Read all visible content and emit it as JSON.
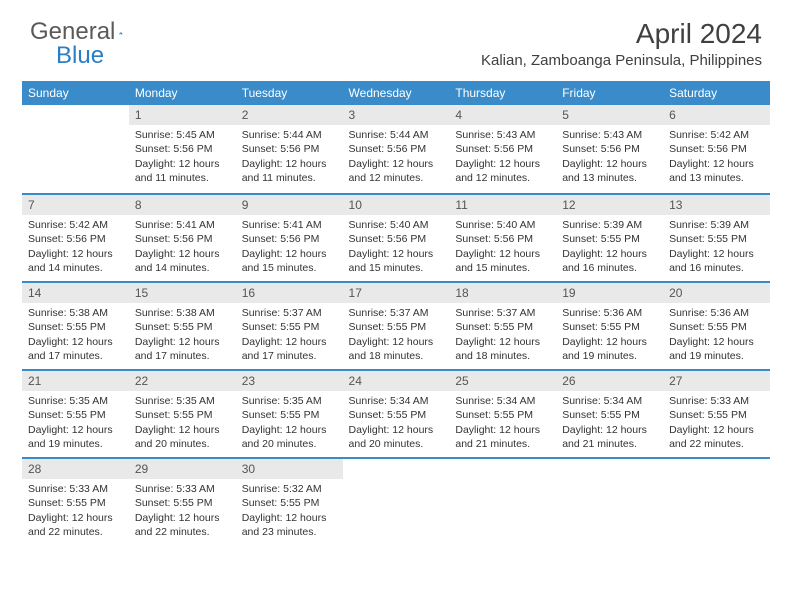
{
  "logo": {
    "text1": "General",
    "text2": "Blue"
  },
  "title": "April 2024",
  "location": "Kalian, Zamboanga Peninsula, Philippines",
  "colors": {
    "header_bg": "#3a8bc9",
    "header_text": "#ffffff",
    "daynum_bg": "#e9e9e9",
    "border": "#3a8bc9",
    "logo_gray": "#5a5a5a",
    "logo_blue": "#2a7ec5"
  },
  "dayHeaders": [
    "Sunday",
    "Monday",
    "Tuesday",
    "Wednesday",
    "Thursday",
    "Friday",
    "Saturday"
  ],
  "weeks": [
    [
      null,
      {
        "n": "1",
        "sr": "Sunrise: 5:45 AM",
        "ss": "Sunset: 5:56 PM",
        "dl": "Daylight: 12 hours and 11 minutes."
      },
      {
        "n": "2",
        "sr": "Sunrise: 5:44 AM",
        "ss": "Sunset: 5:56 PM",
        "dl": "Daylight: 12 hours and 11 minutes."
      },
      {
        "n": "3",
        "sr": "Sunrise: 5:44 AM",
        "ss": "Sunset: 5:56 PM",
        "dl": "Daylight: 12 hours and 12 minutes."
      },
      {
        "n": "4",
        "sr": "Sunrise: 5:43 AM",
        "ss": "Sunset: 5:56 PM",
        "dl": "Daylight: 12 hours and 12 minutes."
      },
      {
        "n": "5",
        "sr": "Sunrise: 5:43 AM",
        "ss": "Sunset: 5:56 PM",
        "dl": "Daylight: 12 hours and 13 minutes."
      },
      {
        "n": "6",
        "sr": "Sunrise: 5:42 AM",
        "ss": "Sunset: 5:56 PM",
        "dl": "Daylight: 12 hours and 13 minutes."
      }
    ],
    [
      {
        "n": "7",
        "sr": "Sunrise: 5:42 AM",
        "ss": "Sunset: 5:56 PM",
        "dl": "Daylight: 12 hours and 14 minutes."
      },
      {
        "n": "8",
        "sr": "Sunrise: 5:41 AM",
        "ss": "Sunset: 5:56 PM",
        "dl": "Daylight: 12 hours and 14 minutes."
      },
      {
        "n": "9",
        "sr": "Sunrise: 5:41 AM",
        "ss": "Sunset: 5:56 PM",
        "dl": "Daylight: 12 hours and 15 minutes."
      },
      {
        "n": "10",
        "sr": "Sunrise: 5:40 AM",
        "ss": "Sunset: 5:56 PM",
        "dl": "Daylight: 12 hours and 15 minutes."
      },
      {
        "n": "11",
        "sr": "Sunrise: 5:40 AM",
        "ss": "Sunset: 5:56 PM",
        "dl": "Daylight: 12 hours and 15 minutes."
      },
      {
        "n": "12",
        "sr": "Sunrise: 5:39 AM",
        "ss": "Sunset: 5:55 PM",
        "dl": "Daylight: 12 hours and 16 minutes."
      },
      {
        "n": "13",
        "sr": "Sunrise: 5:39 AM",
        "ss": "Sunset: 5:55 PM",
        "dl": "Daylight: 12 hours and 16 minutes."
      }
    ],
    [
      {
        "n": "14",
        "sr": "Sunrise: 5:38 AM",
        "ss": "Sunset: 5:55 PM",
        "dl": "Daylight: 12 hours and 17 minutes."
      },
      {
        "n": "15",
        "sr": "Sunrise: 5:38 AM",
        "ss": "Sunset: 5:55 PM",
        "dl": "Daylight: 12 hours and 17 minutes."
      },
      {
        "n": "16",
        "sr": "Sunrise: 5:37 AM",
        "ss": "Sunset: 5:55 PM",
        "dl": "Daylight: 12 hours and 17 minutes."
      },
      {
        "n": "17",
        "sr": "Sunrise: 5:37 AM",
        "ss": "Sunset: 5:55 PM",
        "dl": "Daylight: 12 hours and 18 minutes."
      },
      {
        "n": "18",
        "sr": "Sunrise: 5:37 AM",
        "ss": "Sunset: 5:55 PM",
        "dl": "Daylight: 12 hours and 18 minutes."
      },
      {
        "n": "19",
        "sr": "Sunrise: 5:36 AM",
        "ss": "Sunset: 5:55 PM",
        "dl": "Daylight: 12 hours and 19 minutes."
      },
      {
        "n": "20",
        "sr": "Sunrise: 5:36 AM",
        "ss": "Sunset: 5:55 PM",
        "dl": "Daylight: 12 hours and 19 minutes."
      }
    ],
    [
      {
        "n": "21",
        "sr": "Sunrise: 5:35 AM",
        "ss": "Sunset: 5:55 PM",
        "dl": "Daylight: 12 hours and 19 minutes."
      },
      {
        "n": "22",
        "sr": "Sunrise: 5:35 AM",
        "ss": "Sunset: 5:55 PM",
        "dl": "Daylight: 12 hours and 20 minutes."
      },
      {
        "n": "23",
        "sr": "Sunrise: 5:35 AM",
        "ss": "Sunset: 5:55 PM",
        "dl": "Daylight: 12 hours and 20 minutes."
      },
      {
        "n": "24",
        "sr": "Sunrise: 5:34 AM",
        "ss": "Sunset: 5:55 PM",
        "dl": "Daylight: 12 hours and 20 minutes."
      },
      {
        "n": "25",
        "sr": "Sunrise: 5:34 AM",
        "ss": "Sunset: 5:55 PM",
        "dl": "Daylight: 12 hours and 21 minutes."
      },
      {
        "n": "26",
        "sr": "Sunrise: 5:34 AM",
        "ss": "Sunset: 5:55 PM",
        "dl": "Daylight: 12 hours and 21 minutes."
      },
      {
        "n": "27",
        "sr": "Sunrise: 5:33 AM",
        "ss": "Sunset: 5:55 PM",
        "dl": "Daylight: 12 hours and 22 minutes."
      }
    ],
    [
      {
        "n": "28",
        "sr": "Sunrise: 5:33 AM",
        "ss": "Sunset: 5:55 PM",
        "dl": "Daylight: 12 hours and 22 minutes."
      },
      {
        "n": "29",
        "sr": "Sunrise: 5:33 AM",
        "ss": "Sunset: 5:55 PM",
        "dl": "Daylight: 12 hours and 22 minutes."
      },
      {
        "n": "30",
        "sr": "Sunrise: 5:32 AM",
        "ss": "Sunset: 5:55 PM",
        "dl": "Daylight: 12 hours and 23 minutes."
      },
      null,
      null,
      null,
      null
    ]
  ]
}
